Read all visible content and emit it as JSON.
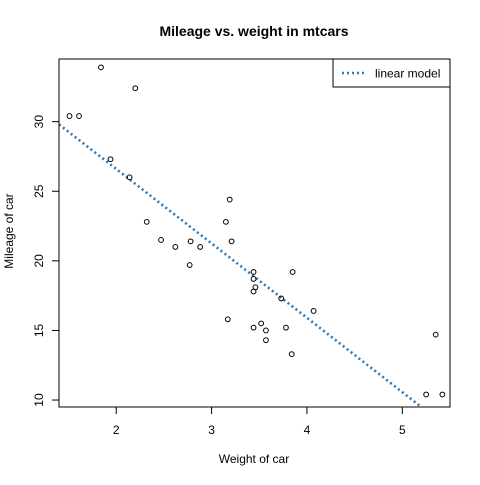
{
  "chart_data": {
    "type": "scatter",
    "title": "Mileage vs. weight in mtcars",
    "xlabel": "Weight of car",
    "ylabel": "Mileage of car",
    "xlim": [
      1.4,
      5.5
    ],
    "ylim": [
      9.5,
      34.5
    ],
    "x_ticks": [
      2,
      3,
      4,
      5
    ],
    "y_ticks": [
      10,
      15,
      20,
      25,
      30
    ],
    "grid": false,
    "legend_position": "top-right",
    "legend": [
      {
        "label": "linear model",
        "style": "dotted-line",
        "color": "#2a78b8"
      }
    ],
    "points": [
      {
        "x": 1.51,
        "y": 30.4
      },
      {
        "x": 1.61,
        "y": 30.4
      },
      {
        "x": 1.84,
        "y": 33.9
      },
      {
        "x": 1.94,
        "y": 27.3
      },
      {
        "x": 2.14,
        "y": 26.0
      },
      {
        "x": 2.2,
        "y": 32.4
      },
      {
        "x": 2.32,
        "y": 22.8
      },
      {
        "x": 2.47,
        "y": 21.5
      },
      {
        "x": 2.62,
        "y": 21.0
      },
      {
        "x": 2.77,
        "y": 19.7
      },
      {
        "x": 2.78,
        "y": 21.4
      },
      {
        "x": 2.88,
        "y": 21.0
      },
      {
        "x": 3.15,
        "y": 22.8
      },
      {
        "x": 3.17,
        "y": 15.8
      },
      {
        "x": 3.19,
        "y": 24.4
      },
      {
        "x": 3.21,
        "y": 21.4
      },
      {
        "x": 3.44,
        "y": 18.7
      },
      {
        "x": 3.44,
        "y": 19.2
      },
      {
        "x": 3.44,
        "y": 17.8
      },
      {
        "x": 3.44,
        "y": 15.2
      },
      {
        "x": 3.46,
        "y": 18.1
      },
      {
        "x": 3.52,
        "y": 15.5
      },
      {
        "x": 3.57,
        "y": 14.3
      },
      {
        "x": 3.57,
        "y": 15.0
      },
      {
        "x": 3.73,
        "y": 17.3
      },
      {
        "x": 3.78,
        "y": 15.2
      },
      {
        "x": 3.84,
        "y": 13.3
      },
      {
        "x": 3.85,
        "y": 19.2
      },
      {
        "x": 4.07,
        "y": 16.4
      },
      {
        "x": 5.25,
        "y": 10.4
      },
      {
        "x": 5.35,
        "y": 14.7
      },
      {
        "x": 5.42,
        "y": 10.4
      }
    ],
    "fit_line": {
      "name": "linear model",
      "intercept": 37.285,
      "slope": -5.344,
      "color": "#2a78b8"
    }
  }
}
